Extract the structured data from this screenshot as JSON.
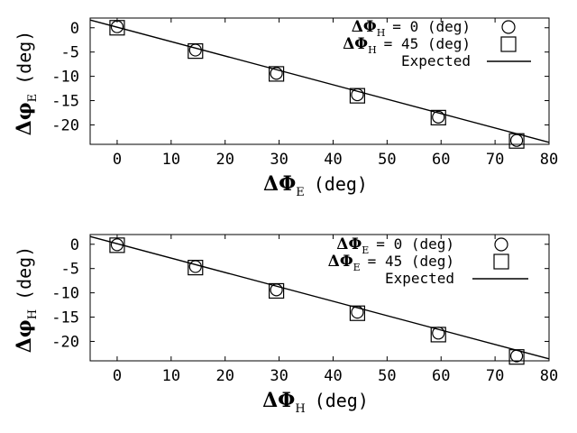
{
  "chart_data": [
    {
      "type": "scatter",
      "xlim": [
        -5,
        80
      ],
      "ylim": [
        -24,
        2
      ],
      "xticks": [
        "0",
        "10",
        "20",
        "30",
        "40",
        "50",
        "60",
        "70",
        "80"
      ],
      "yticks": [
        "0",
        "-5",
        "-10",
        "-15",
        "-20"
      ],
      "xlabel": {
        "symbol": "ΔΦ",
        "sub": "E",
        "unit": "(deg)"
      },
      "ylabel": {
        "symbol": "Δφ",
        "sub": "E",
        "unit": "(deg)"
      },
      "grid": false,
      "legend_position": "top-right",
      "series": [
        {
          "legend": {
            "symbol": "ΔΦ",
            "sub": "H",
            "text": "= 0 (deg)"
          },
          "marker": "circle",
          "x": [
            0,
            14.5,
            29.5,
            44.5,
            59.5,
            74
          ],
          "y": [
            0.2,
            -4.6,
            -9.4,
            -13.8,
            -18.4,
            -23.2
          ]
        },
        {
          "legend": {
            "symbol": "ΔΦ",
            "sub": "H",
            "text": "= 45 (deg)"
          },
          "marker": "square",
          "x": [
            0,
            14.5,
            29.5,
            44.5,
            59.5,
            74
          ],
          "y": [
            0,
            -4.8,
            -9.5,
            -14.0,
            -18.5,
            -23.3
          ]
        },
        {
          "legend": {
            "symbol": "",
            "sub": "",
            "text": "Expected"
          },
          "marker": "line",
          "x": [
            -5,
            80
          ],
          "y": [
            1.6,
            -23.6
          ]
        }
      ]
    },
    {
      "type": "scatter",
      "xlim": [
        -5,
        80
      ],
      "ylim": [
        -24,
        2
      ],
      "xticks": [
        "0",
        "10",
        "20",
        "30",
        "40",
        "50",
        "60",
        "70",
        "80"
      ],
      "yticks": [
        "0",
        "-5",
        "-10",
        "-15",
        "-20"
      ],
      "xlabel": {
        "symbol": "ΔΦ",
        "sub": "H",
        "unit": "(deg)"
      },
      "ylabel": {
        "symbol": "Δφ",
        "sub": "H",
        "unit": "(deg)"
      },
      "grid": false,
      "legend_position": "top-right",
      "series": [
        {
          "legend": {
            "symbol": "ΔΦ",
            "sub": "E",
            "text": "= 0 (deg)"
          },
          "marker": "circle",
          "x": [
            0,
            14.5,
            29.5,
            44.5,
            59.5,
            74
          ],
          "y": [
            -0.1,
            -4.6,
            -9.4,
            -14.0,
            -18.3,
            -23.0
          ]
        },
        {
          "legend": {
            "symbol": "ΔΦ",
            "sub": "E",
            "text": "= 45 (deg)"
          },
          "marker": "square",
          "x": [
            0,
            14.5,
            29.5,
            44.5,
            59.5,
            74
          ],
          "y": [
            -0.2,
            -4.8,
            -9.6,
            -14.2,
            -18.6,
            -23.2
          ]
        },
        {
          "legend": {
            "symbol": "",
            "sub": "",
            "text": "Expected"
          },
          "marker": "line",
          "x": [
            -5,
            80
          ],
          "y": [
            1.6,
            -23.6
          ]
        }
      ]
    }
  ]
}
